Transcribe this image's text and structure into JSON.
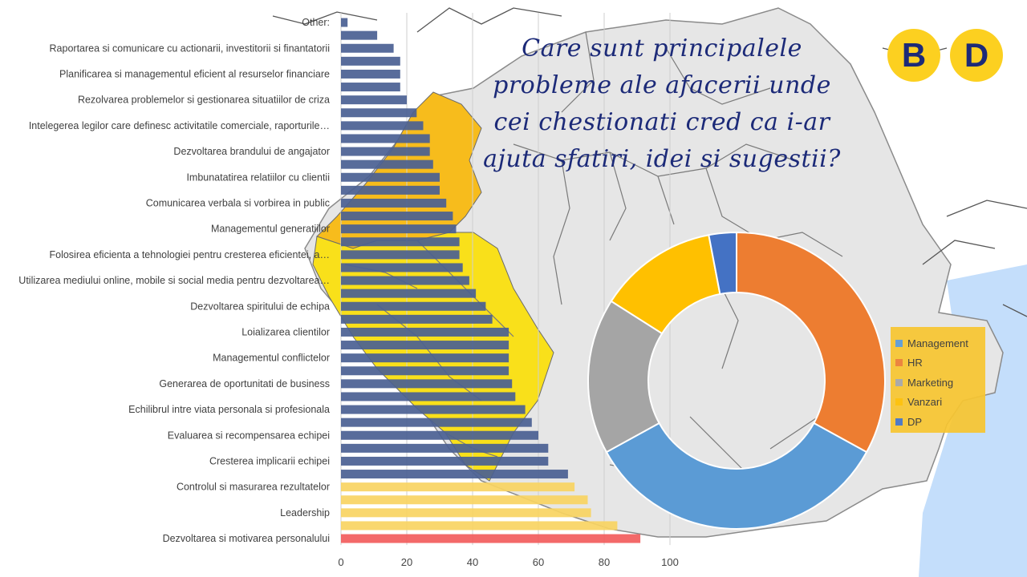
{
  "header": {
    "title": "Care sunt principalele probleme ale afacerii unde cei chestionati cred ca i-ar ajuta sfatiri, idei si sugestii?",
    "logo_letters": [
      "B",
      "D"
    ]
  },
  "colors": {
    "bar_blue": "#4a5f93",
    "bar_yellow": "#f9d462",
    "bar_red": "#f25c5c",
    "map_land": "#e6e6e6",
    "map_border": "#8a8a8a",
    "region_orange": "#f7bc1c",
    "region_yellow": "#f9e01a",
    "sea": "#c4defb",
    "logo": "#fcd020",
    "title": "#1c2a78"
  },
  "chart_data": [
    {
      "type": "bar",
      "orientation": "horizontal",
      "x_ticks": [
        0,
        20,
        40,
        60,
        80,
        100
      ],
      "xlim": [
        0,
        100
      ],
      "grid": true,
      "category_labels": [
        "Other:",
        "Raportarea si comunicare cu actionarii, investitorii si finantatorii",
        "Planificarea si managementul eficient al resurselor financiare",
        "Rezolvarea problemelor si gestionarea situatiilor de criza",
        "Intelegerea legilor care definesc activitatile comerciale, raporturile…",
        "Dezvoltarea brandului de angajator",
        "Imbunatatirea relatiilor cu clientii",
        "Comunicarea verbala si vorbirea in public",
        "Managementul generatiilor",
        "Folosirea eficienta a tehnologiei pentru cresterea eficientei, a…",
        "Utilizarea mediului online, mobile si social media pentru dezvoltarea…",
        "Dezvoltarea spiritului de echipa",
        "Loializarea clientilor",
        "Managementul conflictelor",
        "Generarea de oportunitati de business",
        "Echilibrul intre viata personala si profesionala",
        "Evaluarea si recompensarea echipei",
        "Cresterea implicarii echipei",
        "Controlul si masurarea rezultatelor",
        "Leadership",
        "Dezvoltarea si motivarea personalului"
      ],
      "values": [
        2,
        11,
        16,
        18,
        18,
        18,
        20,
        23,
        25,
        27,
        27,
        28,
        30,
        30,
        32,
        34,
        35,
        36,
        36,
        37,
        39,
        41,
        44,
        46,
        51,
        51,
        51,
        51,
        52,
        53,
        56,
        58,
        60,
        63,
        63,
        69,
        71,
        75,
        76,
        84,
        91
      ],
      "bar_colors": [
        "bar_blue",
        "bar_blue",
        "bar_blue",
        "bar_blue",
        "bar_blue",
        "bar_blue",
        "bar_blue",
        "bar_blue",
        "bar_blue",
        "bar_blue",
        "bar_blue",
        "bar_blue",
        "bar_blue",
        "bar_blue",
        "bar_blue",
        "bar_blue",
        "bar_blue",
        "bar_blue",
        "bar_blue",
        "bar_blue",
        "bar_blue",
        "bar_blue",
        "bar_blue",
        "bar_blue",
        "bar_blue",
        "bar_blue",
        "bar_blue",
        "bar_blue",
        "bar_blue",
        "bar_blue",
        "bar_blue",
        "bar_blue",
        "bar_blue",
        "bar_blue",
        "bar_blue",
        "bar_blue",
        "bar_yellow",
        "bar_yellow",
        "bar_yellow",
        "bar_yellow",
        "bar_red"
      ]
    },
    {
      "type": "pie",
      "donut": true,
      "labels": [
        "Management",
        "HR",
        "Marketing",
        "Vanzari",
        "DP"
      ],
      "values": [
        34,
        33,
        17,
        13,
        3
      ],
      "colors": [
        "#5b9bd5",
        "#ed7d31",
        "#a5a5a5",
        "#ffc000",
        "#4472c4"
      ],
      "legend_position": "right"
    }
  ]
}
